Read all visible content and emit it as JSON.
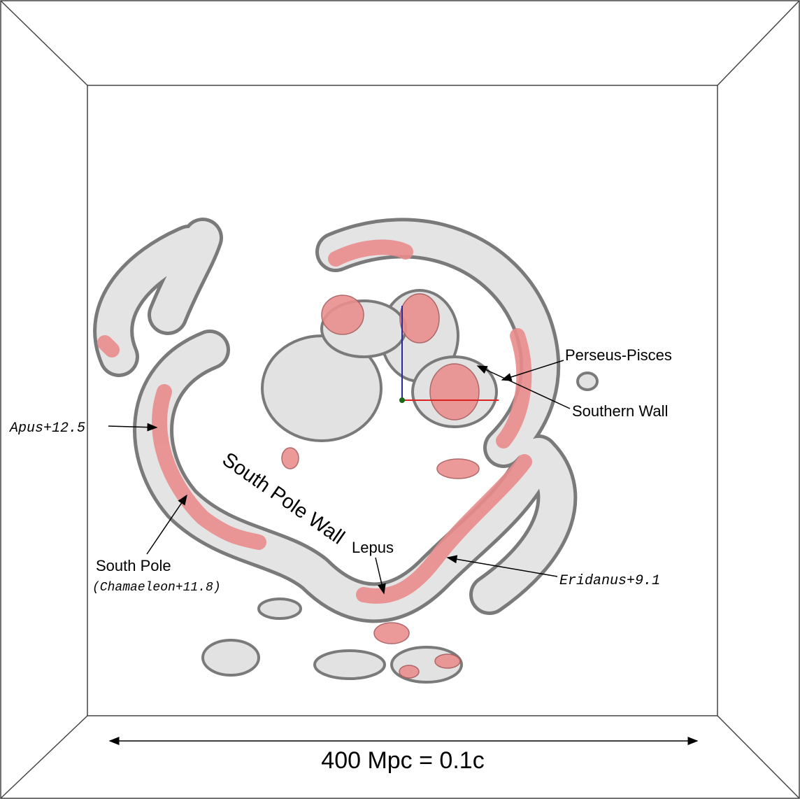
{
  "labels": {
    "perseus_pisces": "Perseus-Pisces",
    "southern_wall": "Southern Wall",
    "apus": "Apus+12.5",
    "south_pole_wall": "South Pole Wall",
    "lepus": "Lepus",
    "south_pole": "South Pole",
    "chamaeleon": "(Chamaeleon+11.8)",
    "eridanus": "Eridanus+9.1"
  },
  "scale_bar": "400 Mpc = 0.1c"
}
